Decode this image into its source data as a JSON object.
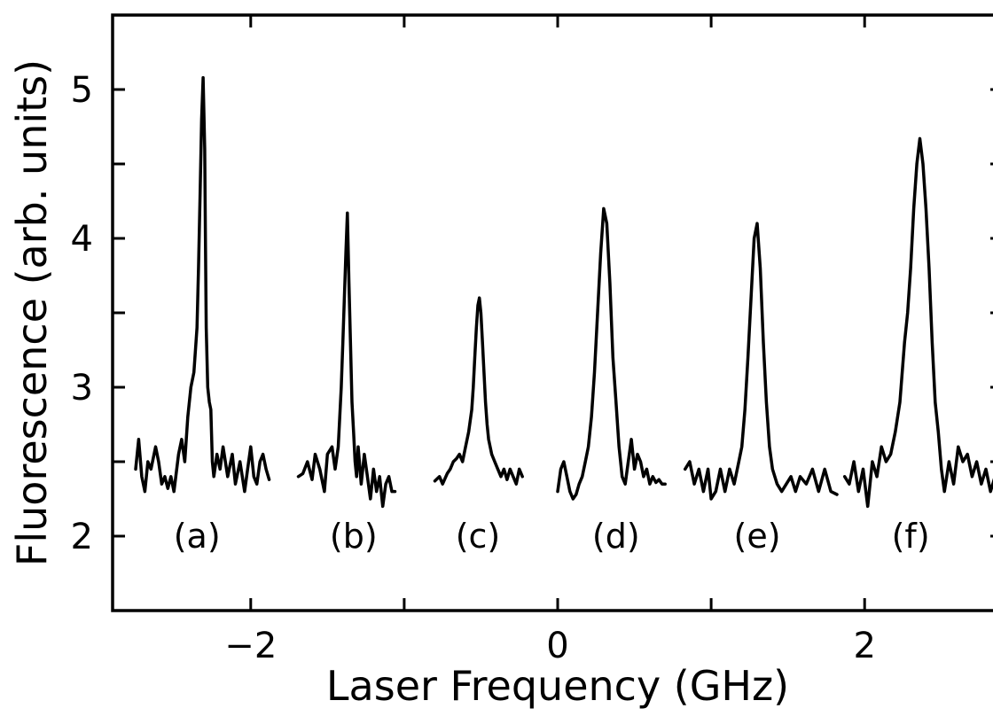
{
  "chart_data": {
    "type": "line",
    "xlabel": "Laser Frequency (GHz)",
    "ylabel": "Fluorescence (arb. units)",
    "xlim": [
      -2.9,
      2.9
    ],
    "ylim": [
      1.5,
      5.5
    ],
    "x_ticks": [
      -2,
      0,
      2
    ],
    "x_tick_labels": [
      "−2",
      "0",
      "2"
    ],
    "x_minor_ticks": [
      -1,
      1
    ],
    "y_ticks": [
      2,
      3,
      4,
      5
    ],
    "y_tick_labels": [
      "2",
      "3",
      "4",
      "5"
    ],
    "y_minor_ticks": [
      2.5,
      3.5,
      4.5
    ],
    "grid": false,
    "line_color": "#000000",
    "series": [
      {
        "label": "(a)",
        "label_x": -2.35,
        "label_y": 2.0,
        "x": [
          -2.75,
          -2.73,
          -2.71,
          -2.69,
          -2.67,
          -2.65,
          -2.62,
          -2.6,
          -2.58,
          -2.56,
          -2.54,
          -2.52,
          -2.5,
          -2.47,
          -2.45,
          -2.43,
          -2.41,
          -2.39,
          -2.37,
          -2.35,
          -2.34,
          -2.33,
          -2.32,
          -2.31,
          -2.3,
          -2.295,
          -2.29,
          -2.28,
          -2.27,
          -2.26,
          -2.25,
          -2.24,
          -2.22,
          -2.2,
          -2.18,
          -2.15,
          -2.12,
          -2.1,
          -2.07,
          -2.04,
          -2.02,
          -2.0,
          -1.98,
          -1.96,
          -1.94,
          -1.92,
          -1.9,
          -1.88
        ],
        "values": [
          2.45,
          2.65,
          2.4,
          2.3,
          2.5,
          2.45,
          2.6,
          2.5,
          2.35,
          2.4,
          2.32,
          2.4,
          2.3,
          2.55,
          2.65,
          2.5,
          2.8,
          3.0,
          3.1,
          3.4,
          3.8,
          4.3,
          4.8,
          5.08,
          4.6,
          4.0,
          3.4,
          3.0,
          2.9,
          2.85,
          2.5,
          2.4,
          2.55,
          2.45,
          2.6,
          2.4,
          2.55,
          2.35,
          2.5,
          2.3,
          2.45,
          2.6,
          2.4,
          2.35,
          2.5,
          2.55,
          2.45,
          2.38
        ]
      },
      {
        "label": "(b)",
        "label_x": -1.33,
        "label_y": 2.0,
        "x": [
          -1.69,
          -1.66,
          -1.63,
          -1.6,
          -1.58,
          -1.55,
          -1.52,
          -1.5,
          -1.47,
          -1.45,
          -1.43,
          -1.42,
          -1.41,
          -1.4,
          -1.39,
          -1.38,
          -1.37,
          -1.36,
          -1.35,
          -1.34,
          -1.33,
          -1.32,
          -1.31,
          -1.3,
          -1.28,
          -1.26,
          -1.24,
          -1.22,
          -1.2,
          -1.18,
          -1.16,
          -1.14,
          -1.12,
          -1.1,
          -1.08,
          -1.06
        ],
        "values": [
          2.4,
          2.42,
          2.5,
          2.38,
          2.55,
          2.45,
          2.3,
          2.55,
          2.6,
          2.45,
          2.6,
          2.8,
          3.0,
          3.3,
          3.6,
          3.9,
          4.17,
          3.7,
          3.3,
          2.9,
          2.7,
          2.5,
          2.4,
          2.6,
          2.35,
          2.55,
          2.4,
          2.25,
          2.45,
          2.3,
          2.4,
          2.2,
          2.35,
          2.4,
          2.3,
          2.3
        ]
      },
      {
        "label": "(c)",
        "label_x": -0.52,
        "label_y": 2.0,
        "x": [
          -0.8,
          -0.77,
          -0.75,
          -0.72,
          -0.7,
          -0.68,
          -0.66,
          -0.64,
          -0.62,
          -0.6,
          -0.58,
          -0.56,
          -0.55,
          -0.54,
          -0.53,
          -0.52,
          -0.51,
          -0.5,
          -0.49,
          -0.48,
          -0.47,
          -0.46,
          -0.45,
          -0.43,
          -0.41,
          -0.39,
          -0.37,
          -0.35,
          -0.33,
          -0.31,
          -0.29,
          -0.27,
          -0.25,
          -0.23
        ],
        "values": [
          2.37,
          2.4,
          2.35,
          2.42,
          2.45,
          2.5,
          2.52,
          2.55,
          2.5,
          2.6,
          2.7,
          2.85,
          3.0,
          3.2,
          3.4,
          3.55,
          3.6,
          3.5,
          3.3,
          3.1,
          2.9,
          2.75,
          2.65,
          2.55,
          2.5,
          2.45,
          2.4,
          2.45,
          2.38,
          2.45,
          2.4,
          2.35,
          2.45,
          2.4
        ]
      },
      {
        "label": "(d)",
        "label_x": 0.38,
        "label_y": 2.0,
        "x": [
          0.0,
          0.02,
          0.04,
          0.06,
          0.08,
          0.1,
          0.12,
          0.14,
          0.16,
          0.18,
          0.2,
          0.22,
          0.24,
          0.26,
          0.28,
          0.3,
          0.32,
          0.34,
          0.36,
          0.38,
          0.4,
          0.42,
          0.44,
          0.46,
          0.48,
          0.5,
          0.52,
          0.54,
          0.56,
          0.58,
          0.6,
          0.62,
          0.64,
          0.66,
          0.68,
          0.7
        ],
        "values": [
          2.3,
          2.45,
          2.5,
          2.4,
          2.3,
          2.25,
          2.28,
          2.35,
          2.4,
          2.5,
          2.6,
          2.8,
          3.1,
          3.5,
          3.9,
          4.2,
          4.1,
          3.7,
          3.2,
          2.9,
          2.6,
          2.4,
          2.35,
          2.5,
          2.65,
          2.45,
          2.55,
          2.5,
          2.4,
          2.45,
          2.35,
          2.4,
          2.36,
          2.38,
          2.35,
          2.35
        ]
      },
      {
        "label": "(e)",
        "label_x": 1.3,
        "label_y": 2.0,
        "x": [
          0.83,
          0.86,
          0.89,
          0.92,
          0.95,
          0.98,
          1.0,
          1.03,
          1.06,
          1.09,
          1.12,
          1.15,
          1.18,
          1.2,
          1.22,
          1.24,
          1.26,
          1.28,
          1.3,
          1.32,
          1.34,
          1.36,
          1.38,
          1.4,
          1.43,
          1.46,
          1.49,
          1.52,
          1.55,
          1.58,
          1.62,
          1.66,
          1.7,
          1.74,
          1.78,
          1.82
        ],
        "values": [
          2.45,
          2.5,
          2.35,
          2.45,
          2.3,
          2.45,
          2.25,
          2.3,
          2.45,
          2.3,
          2.45,
          2.35,
          2.5,
          2.6,
          2.85,
          3.2,
          3.6,
          4.0,
          4.1,
          3.8,
          3.3,
          2.9,
          2.6,
          2.45,
          2.35,
          2.3,
          2.35,
          2.4,
          2.3,
          2.4,
          2.35,
          2.45,
          2.3,
          2.45,
          2.3,
          2.28
        ]
      },
      {
        "label": "(f)",
        "label_x": 2.3,
        "label_y": 2.0,
        "x": [
          1.87,
          1.9,
          1.93,
          1.96,
          1.99,
          2.02,
          2.05,
          2.08,
          2.11,
          2.14,
          2.17,
          2.2,
          2.23,
          2.26,
          2.28,
          2.3,
          2.32,
          2.34,
          2.36,
          2.38,
          2.4,
          2.42,
          2.44,
          2.46,
          2.48,
          2.5,
          2.52,
          2.55,
          2.58,
          2.61,
          2.64,
          2.67,
          2.7,
          2.73,
          2.76,
          2.79,
          2.82,
          2.85,
          2.88
        ],
        "values": [
          2.4,
          2.35,
          2.5,
          2.3,
          2.45,
          2.2,
          2.5,
          2.4,
          2.6,
          2.5,
          2.55,
          2.7,
          2.9,
          3.3,
          3.5,
          3.8,
          4.2,
          4.5,
          4.67,
          4.5,
          4.2,
          3.8,
          3.3,
          2.9,
          2.7,
          2.45,
          2.3,
          2.5,
          2.35,
          2.6,
          2.5,
          2.55,
          2.4,
          2.5,
          2.35,
          2.45,
          2.3,
          2.4,
          2.3
        ]
      }
    ]
  }
}
